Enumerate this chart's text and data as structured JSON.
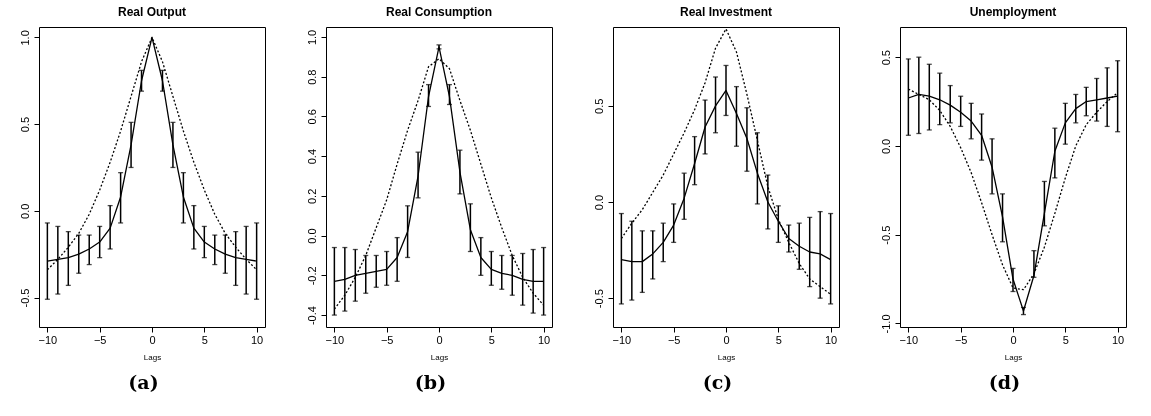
{
  "chart_data": [
    {
      "type": "line",
      "title": "Real Output",
      "xlabel": "Lags",
      "annotations": [
        "(a)"
      ],
      "x": [
        -10,
        -9,
        -8,
        -7,
        -6,
        -5,
        -4,
        -3,
        -2,
        -1,
        0,
        1,
        2,
        3,
        4,
        5,
        6,
        7,
        8,
        9,
        10
      ],
      "xlim": [
        -10.8,
        10.8
      ],
      "xticks": [
        -10,
        -5,
        0,
        5,
        10
      ],
      "ylim": [
        -0.67,
        1.06
      ],
      "yticks": [
        {
          "value": -0.5,
          "label": "-0.5"
        },
        {
          "value": 0,
          "label": "0.0"
        },
        {
          "value": 0.5,
          "label": "0.5"
        },
        {
          "value": 1,
          "label": "1.0"
        }
      ],
      "grid": false,
      "marker": "none",
      "series": [
        {
          "color": "#000000",
          "line_style": "solid",
          "values": [
            -0.29,
            -0.28,
            -0.27,
            -0.25,
            -0.22,
            -0.18,
            -0.1,
            0.08,
            0.38,
            0.75,
            1.0,
            0.75,
            0.38,
            0.08,
            -0.1,
            -0.18,
            -0.22,
            -0.25,
            -0.27,
            -0.28,
            -0.29
          ],
          "errors": [
            [
              -0.51,
              -0.07
            ],
            [
              -0.48,
              -0.09
            ],
            [
              -0.43,
              -0.12
            ],
            [
              -0.36,
              -0.14
            ],
            [
              -0.31,
              -0.14
            ],
            [
              -0.27,
              -0.09
            ],
            [
              -0.22,
              0.03
            ],
            [
              -0.07,
              0.22
            ],
            [
              0.25,
              0.51
            ],
            [
              0.69,
              0.81
            ],
            null,
            [
              0.69,
              0.81
            ],
            [
              0.25,
              0.51
            ],
            [
              -0.07,
              0.22
            ],
            [
              -0.22,
              0.03
            ],
            [
              -0.27,
              -0.09
            ],
            [
              -0.31,
              -0.14
            ],
            [
              -0.36,
              -0.14
            ],
            [
              -0.43,
              -0.12
            ],
            [
              -0.48,
              -0.09
            ],
            [
              -0.51,
              -0.07
            ]
          ]
        },
        {
          "color": "#000000",
          "line_style": "dotted",
          "values": [
            -0.34,
            -0.28,
            -0.21,
            -0.13,
            -0.02,
            0.12,
            0.28,
            0.46,
            0.66,
            0.86,
            1.0,
            0.86,
            0.66,
            0.46,
            0.28,
            0.12,
            -0.02,
            -0.13,
            -0.21,
            -0.28,
            -0.34
          ]
        }
      ]
    },
    {
      "type": "line",
      "title": "Real Consumption",
      "xlabel": "Lags",
      "annotations": [
        "(b)"
      ],
      "x": [
        -10,
        -9,
        -8,
        -7,
        -6,
        -5,
        -4,
        -3,
        -2,
        -1,
        0,
        1,
        2,
        3,
        4,
        5,
        6,
        7,
        8,
        9,
        10
      ],
      "xlim": [
        -10.8,
        10.8
      ],
      "xticks": [
        -10,
        -5,
        0,
        5,
        10
      ],
      "ylim": [
        -0.46,
        1.05
      ],
      "yticks": [
        {
          "value": -0.4,
          "label": "-0.4"
        },
        {
          "value": -0.2,
          "label": "-0.2"
        },
        {
          "value": 0,
          "label": "0.0"
        },
        {
          "value": 0.2,
          "label": "0.2"
        },
        {
          "value": 0.4,
          "label": "0.4"
        },
        {
          "value": 0.6,
          "label": "0.6"
        },
        {
          "value": 0.8,
          "label": "0.8"
        },
        {
          "value": 1,
          "label": "1.0"
        }
      ],
      "grid": false,
      "marker": "none",
      "series": [
        {
          "color": "#000000",
          "line_style": "solid",
          "values": [
            -0.23,
            -0.22,
            -0.2,
            -0.19,
            -0.18,
            -0.17,
            -0.11,
            0.02,
            0.3,
            0.7,
            0.95,
            0.7,
            0.32,
            0.03,
            -0.11,
            -0.17,
            -0.19,
            -0.2,
            -0.22,
            -0.23,
            -0.23
          ],
          "errors": [
            [
              -0.4,
              -0.06
            ],
            [
              -0.38,
              -0.06
            ],
            [
              -0.33,
              -0.07
            ],
            [
              -0.29,
              -0.1
            ],
            [
              -0.26,
              -0.1
            ],
            [
              -0.25,
              -0.08
            ],
            [
              -0.23,
              -0.01
            ],
            [
              -0.11,
              0.15
            ],
            [
              0.19,
              0.42
            ],
            [
              0.65,
              0.76
            ],
            [
              0.94,
              0.96
            ],
            [
              0.66,
              0.76
            ],
            [
              0.21,
              0.43
            ],
            [
              -0.08,
              0.16
            ],
            [
              -0.2,
              -0.01
            ],
            [
              -0.25,
              -0.08
            ],
            [
              -0.27,
              -0.1
            ],
            [
              -0.3,
              -0.1
            ],
            [
              -0.35,
              -0.09
            ],
            [
              -0.39,
              -0.07
            ],
            [
              -0.4,
              -0.06
            ]
          ]
        },
        {
          "color": "#000000",
          "line_style": "dotted",
          "values": [
            -0.37,
            -0.3,
            -0.21,
            -0.1,
            0.04,
            0.18,
            0.36,
            0.53,
            0.68,
            0.85,
            0.89,
            0.84,
            0.68,
            0.53,
            0.36,
            0.19,
            0.04,
            -0.1,
            -0.21,
            -0.29,
            -0.35
          ]
        }
      ]
    },
    {
      "type": "line",
      "title": "Real Investment",
      "xlabel": "Lags",
      "annotations": [
        "(c)"
      ],
      "x": [
        -10,
        -9,
        -8,
        -7,
        -6,
        -5,
        -4,
        -3,
        -2,
        -1,
        0,
        1,
        2,
        3,
        4,
        5,
        6,
        7,
        8,
        9,
        10
      ],
      "xlim": [
        -10.8,
        10.8
      ],
      "xticks": [
        -10,
        -5,
        0,
        5,
        10
      ],
      "ylim": [
        -0.65,
        0.91
      ],
      "yticks": [
        {
          "value": -0.5,
          "label": "-0.5"
        },
        {
          "value": 0,
          "label": "0.0"
        },
        {
          "value": 0.5,
          "label": "0.5"
        }
      ],
      "grid": false,
      "marker": "none",
      "series": [
        {
          "color": "#000000",
          "line_style": "solid",
          "values": [
            -0.3,
            -0.31,
            -0.31,
            -0.27,
            -0.21,
            -0.12,
            0.02,
            0.2,
            0.39,
            0.5,
            0.58,
            0.46,
            0.33,
            0.15,
            0.0,
            -0.1,
            -0.19,
            -0.23,
            -0.26,
            -0.27,
            -0.3
          ],
          "errors": [
            [
              -0.53,
              -0.06
            ],
            [
              -0.51,
              -0.1
            ],
            [
              -0.47,
              -0.15
            ],
            [
              -0.4,
              -0.15
            ],
            [
              -0.31,
              -0.11
            ],
            [
              -0.21,
              -0.01
            ],
            [
              -0.09,
              0.15
            ],
            [
              0.09,
              0.34
            ],
            [
              0.25,
              0.53
            ],
            [
              0.36,
              0.65
            ],
            [
              0.45,
              0.71
            ],
            [
              0.29,
              0.6
            ],
            [
              0.16,
              0.49
            ],
            [
              -0.01,
              0.36
            ],
            [
              -0.14,
              0.14
            ],
            [
              -0.21,
              -0.02
            ],
            [
              -0.26,
              -0.12
            ],
            [
              -0.35,
              -0.11
            ],
            [
              -0.44,
              -0.08
            ],
            [
              -0.5,
              -0.05
            ],
            [
              -0.53,
              -0.06
            ]
          ]
        },
        {
          "color": "#000000",
          "line_style": "dotted",
          "values": [
            -0.19,
            -0.11,
            -0.04,
            0.05,
            0.14,
            0.25,
            0.36,
            0.48,
            0.62,
            0.8,
            0.9,
            0.78,
            0.56,
            0.32,
            0.08,
            -0.09,
            -0.21,
            -0.32,
            -0.4,
            -0.44,
            -0.48
          ]
        }
      ]
    },
    {
      "type": "line",
      "title": "Unemployment",
      "xlabel": "Lags",
      "annotations": [
        "(d)"
      ],
      "x": [
        -10,
        -9,
        -8,
        -7,
        -6,
        -5,
        -4,
        -3,
        -2,
        -1,
        0,
        1,
        2,
        3,
        4,
        5,
        6,
        7,
        8,
        9,
        10
      ],
      "xlim": [
        -10.8,
        10.8
      ],
      "xticks": [
        -10,
        -5,
        0,
        5,
        10
      ],
      "ylim": [
        -1.02,
        0.67
      ],
      "yticks": [
        {
          "value": -1,
          "label": "-1.0"
        },
        {
          "value": -0.5,
          "label": "-0.5"
        },
        {
          "value": 0,
          "label": "0.0"
        },
        {
          "value": 0.5,
          "label": "0.5"
        }
      ],
      "grid": false,
      "marker": "none",
      "series": [
        {
          "color": "#000000",
          "line_style": "solid",
          "values": [
            0.27,
            0.29,
            0.28,
            0.26,
            0.23,
            0.19,
            0.14,
            0.06,
            -0.12,
            -0.4,
            -0.75,
            -0.93,
            -0.73,
            -0.38,
            -0.03,
            0.13,
            0.21,
            0.25,
            0.26,
            0.27,
            0.28
          ],
          "errors": [
            [
              0.06,
              0.49
            ],
            [
              0.07,
              0.5
            ],
            [
              0.09,
              0.46
            ],
            [
              0.12,
              0.41
            ],
            [
              0.13,
              0.34
            ],
            [
              0.11,
              0.28
            ],
            [
              0.04,
              0.24
            ],
            [
              -0.08,
              0.18
            ],
            [
              -0.27,
              0.04
            ],
            [
              -0.54,
              -0.27
            ],
            [
              -0.82,
              -0.69
            ],
            [
              -0.95,
              -0.91
            ],
            [
              -0.74,
              -0.59
            ],
            [
              -0.45,
              -0.2
            ],
            [
              -0.18,
              0.1
            ],
            [
              0.01,
              0.24
            ],
            [
              0.13,
              0.29
            ],
            [
              0.17,
              0.33
            ],
            [
              0.14,
              0.38
            ],
            [
              0.11,
              0.44
            ],
            [
              0.08,
              0.48
            ]
          ]
        },
        {
          "color": "#000000",
          "line_style": "dotted",
          "values": [
            0.32,
            0.29,
            0.26,
            0.2,
            0.11,
            -0.01,
            -0.15,
            -0.32,
            -0.5,
            -0.67,
            -0.8,
            -0.81,
            -0.72,
            -0.57,
            -0.38,
            -0.18,
            0.0,
            0.12,
            0.19,
            0.25,
            0.3
          ]
        }
      ]
    }
  ]
}
